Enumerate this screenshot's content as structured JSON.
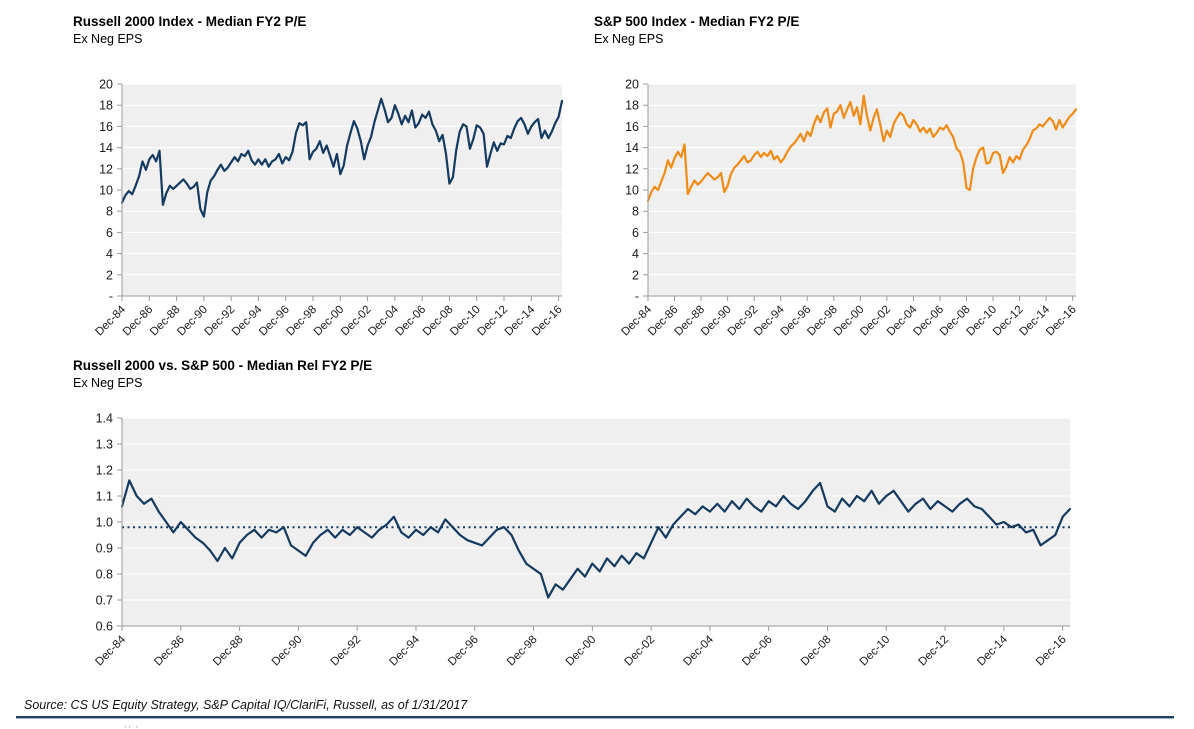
{
  "footer": {
    "source": "Source: CS US Equity Strategy, S&P Capital IQ/ClariFi, Russell, as of 1/31/2017",
    "rule_color": "#1e4164",
    "artifact_fragment": "'' '"
  },
  "chart_data": [
    {
      "type": "line",
      "title": "Russell 2000 Index - Median FY2 P/E",
      "subtitle": "Ex Neg EPS",
      "line_color": "#143a5f",
      "plot_bg": "#efefef",
      "grid_color": "#ffffff",
      "axis_color": "#9b9b9b",
      "ylim": [
        0,
        20
      ],
      "ytick_values": [
        20,
        18,
        16,
        14,
        12,
        10,
        8,
        6,
        4,
        2,
        0
      ],
      "ytick_labels": [
        "20",
        "18",
        "16",
        "14",
        "12",
        "10",
        "8",
        "6",
        "4",
        "2",
        "-"
      ],
      "x_tick_labels": [
        "Dec-84",
        "Dec-86",
        "Dec-88",
        "Dec-90",
        "Dec-92",
        "Dec-94",
        "Dec-96",
        "Dec-98",
        "Dec-00",
        "Dec-02",
        "Dec-04",
        "Dec-06",
        "Dec-08",
        "Dec-10",
        "Dec-12",
        "Dec-14",
        "Dec-16"
      ],
      "x_tick_data_indices": [
        0,
        8,
        16,
        24,
        32,
        40,
        48,
        56,
        64,
        72,
        80,
        88,
        96,
        104,
        112,
        120,
        128
      ],
      "values_quarterly": [
        8.8,
        9.5,
        9.9,
        9.6,
        10.4,
        11.3,
        12.7,
        11.9,
        12.9,
        13.3,
        12.7,
        13.7,
        8.6,
        9.7,
        10.4,
        10.1,
        10.4,
        10.7,
        11.0,
        10.6,
        10.1,
        10.3,
        10.7,
        8.2,
        7.5,
        9.8,
        10.9,
        11.3,
        11.9,
        12.4,
        11.8,
        12.1,
        12.6,
        13.1,
        12.7,
        13.4,
        13.2,
        13.7,
        12.8,
        12.4,
        12.9,
        12.4,
        12.9,
        12.2,
        12.7,
        12.9,
        13.4,
        12.5,
        13.1,
        12.8,
        13.6,
        15.4,
        16.3,
        16.1,
        16.4,
        12.9,
        13.6,
        13.9,
        14.6,
        13.5,
        14.2,
        13.2,
        12.2,
        13.4,
        11.5,
        12.3,
        14.2,
        15.4,
        16.5,
        15.8,
        14.6,
        12.9,
        14.2,
        15.0,
        16.4,
        17.5,
        18.6,
        17.6,
        16.4,
        16.8,
        18.0,
        17.2,
        16.2,
        17.0,
        16.4,
        17.5,
        15.9,
        16.3,
        17.1,
        16.8,
        17.4,
        16.2,
        15.6,
        14.6,
        15.2,
        13.4,
        10.6,
        11.2,
        13.8,
        15.5,
        16.2,
        16.0,
        13.9,
        14.8,
        16.1,
        15.9,
        15.3,
        12.2,
        13.4,
        14.5,
        13.7,
        14.4,
        14.3,
        15.1,
        14.9,
        15.8,
        16.5,
        16.8,
        16.2,
        15.3,
        16.0,
        16.4,
        16.7,
        14.9,
        15.6,
        14.9,
        15.5,
        16.3,
        16.9,
        18.4
      ]
    },
    {
      "type": "line",
      "title": "S&P 500 Index - Median FY2 P/E",
      "subtitle": "Ex Neg EPS",
      "line_color": "#f08b16",
      "plot_bg": "#efefef",
      "grid_color": "#ffffff",
      "axis_color": "#9b9b9b",
      "ylim": [
        0,
        20
      ],
      "ytick_values": [
        20,
        18,
        16,
        14,
        12,
        10,
        8,
        6,
        4,
        2,
        0
      ],
      "ytick_labels": [
        "20",
        "18",
        "16",
        "14",
        "12",
        "10",
        "8",
        "6",
        "4",
        "2",
        "-"
      ],
      "x_tick_labels": [
        "Dec-84",
        "Dec-86",
        "Dec-88",
        "Dec-90",
        "Dec-92",
        "Dec-94",
        "Dec-96",
        "Dec-98",
        "Dec-00",
        "Dec-02",
        "Dec-04",
        "Dec-06",
        "Dec-08",
        "Dec-10",
        "Dec-12",
        "Dec-14",
        "Dec-16"
      ],
      "x_tick_data_indices": [
        0,
        8,
        16,
        24,
        32,
        40,
        48,
        56,
        64,
        72,
        80,
        88,
        96,
        104,
        112,
        120,
        128
      ],
      "values_quarterly": [
        9.0,
        9.8,
        10.3,
        10.0,
        10.8,
        11.6,
        12.8,
        12.1,
        13.0,
        13.6,
        13.1,
        14.3,
        9.6,
        10.3,
        10.9,
        10.5,
        10.8,
        11.2,
        11.6,
        11.3,
        11.0,
        11.2,
        11.6,
        9.8,
        10.4,
        11.5,
        12.1,
        12.4,
        12.8,
        13.2,
        12.6,
        12.8,
        13.3,
        13.6,
        13.1,
        13.5,
        13.2,
        13.7,
        12.9,
        13.2,
        12.6,
        13.0,
        13.6,
        14.1,
        14.4,
        14.8,
        15.3,
        14.6,
        15.5,
        15.1,
        16.2,
        17.0,
        16.4,
        17.3,
        17.7,
        15.9,
        17.2,
        17.4,
        18.0,
        16.8,
        17.6,
        18.3,
        17.0,
        17.8,
        16.2,
        18.9,
        17.0,
        15.6,
        16.8,
        17.6,
        16.2,
        14.6,
        15.6,
        15.0,
        16.2,
        16.8,
        17.3,
        17.0,
        16.2,
        15.9,
        16.6,
        16.2,
        15.5,
        15.9,
        15.4,
        15.8,
        15.0,
        15.4,
        15.9,
        15.7,
        16.1,
        15.5,
        15.0,
        13.9,
        13.6,
        12.6,
        10.2,
        10.0,
        12.0,
        13.1,
        13.8,
        14.0,
        12.5,
        12.6,
        13.5,
        13.6,
        13.3,
        11.6,
        12.2,
        13.1,
        12.6,
        13.2,
        12.9,
        13.8,
        14.2,
        14.8,
        15.6,
        15.8,
        16.2,
        16.0,
        16.4,
        16.8,
        16.5,
        15.7,
        16.6,
        15.9,
        16.4,
        16.9,
        17.2,
        17.6
      ]
    },
    {
      "type": "line",
      "title": "Russell 2000 vs. S&P 500 - Median Rel FY2 P/E",
      "subtitle": "Ex Neg EPS",
      "line_color": "#143a5f",
      "plot_bg": "#efefef",
      "grid_color": "#ffffff",
      "axis_color": "#9b9b9b",
      "ylim": [
        0.6,
        1.4
      ],
      "ytick_values": [
        1.4,
        1.3,
        1.2,
        1.1,
        1.0,
        0.9,
        0.8,
        0.7,
        0.6
      ],
      "ytick_labels": [
        "1.4",
        "1.3",
        "1.2",
        "1.1",
        "1.0",
        "0.9",
        "0.8",
        "0.7",
        "0.6"
      ],
      "x_tick_labels": [
        "Dec-84",
        "Dec-86",
        "Dec-88",
        "Dec-90",
        "Dec-92",
        "Dec-94",
        "Dec-96",
        "Dec-98",
        "Dec-00",
        "Dec-02",
        "Dec-04",
        "Dec-06",
        "Dec-08",
        "Dec-10",
        "Dec-12",
        "Dec-14",
        "Dec-16"
      ],
      "x_tick_data_indices": [
        0,
        8,
        16,
        24,
        32,
        40,
        48,
        56,
        64,
        72,
        80,
        88,
        96,
        104,
        112,
        120,
        128
      ],
      "avg_line_value": 0.98,
      "avg_line_style": "dotted",
      "avg_line_color": "#143a5f",
      "values_quarterly": [
        1.06,
        1.16,
        1.1,
        1.07,
        1.09,
        1.04,
        1.0,
        0.96,
        1.0,
        0.97,
        0.94,
        0.92,
        0.89,
        0.85,
        0.9,
        0.86,
        0.92,
        0.95,
        0.97,
        0.94,
        0.97,
        0.96,
        0.98,
        0.91,
        0.89,
        0.87,
        0.92,
        0.95,
        0.97,
        0.94,
        0.97,
        0.95,
        0.98,
        0.96,
        0.94,
        0.97,
        0.99,
        1.02,
        0.96,
        0.94,
        0.97,
        0.95,
        0.98,
        0.96,
        1.01,
        0.98,
        0.95,
        0.93,
        0.92,
        0.91,
        0.94,
        0.97,
        0.98,
        0.95,
        0.89,
        0.84,
        0.82,
        0.8,
        0.71,
        0.76,
        0.74,
        0.78,
        0.82,
        0.79,
        0.84,
        0.81,
        0.86,
        0.83,
        0.87,
        0.84,
        0.88,
        0.86,
        0.92,
        0.98,
        0.94,
        0.99,
        1.02,
        1.05,
        1.03,
        1.06,
        1.04,
        1.07,
        1.04,
        1.08,
        1.05,
        1.09,
        1.06,
        1.04,
        1.08,
        1.06,
        1.1,
        1.07,
        1.05,
        1.08,
        1.12,
        1.15,
        1.06,
        1.04,
        1.09,
        1.06,
        1.1,
        1.08,
        1.12,
        1.07,
        1.1,
        1.12,
        1.08,
        1.04,
        1.07,
        1.09,
        1.05,
        1.08,
        1.06,
        1.04,
        1.07,
        1.09,
        1.06,
        1.05,
        1.02,
        0.99,
        1.0,
        0.98,
        0.99,
        0.96,
        0.97,
        0.91,
        0.93,
        0.95,
        1.02,
        1.05
      ]
    }
  ]
}
